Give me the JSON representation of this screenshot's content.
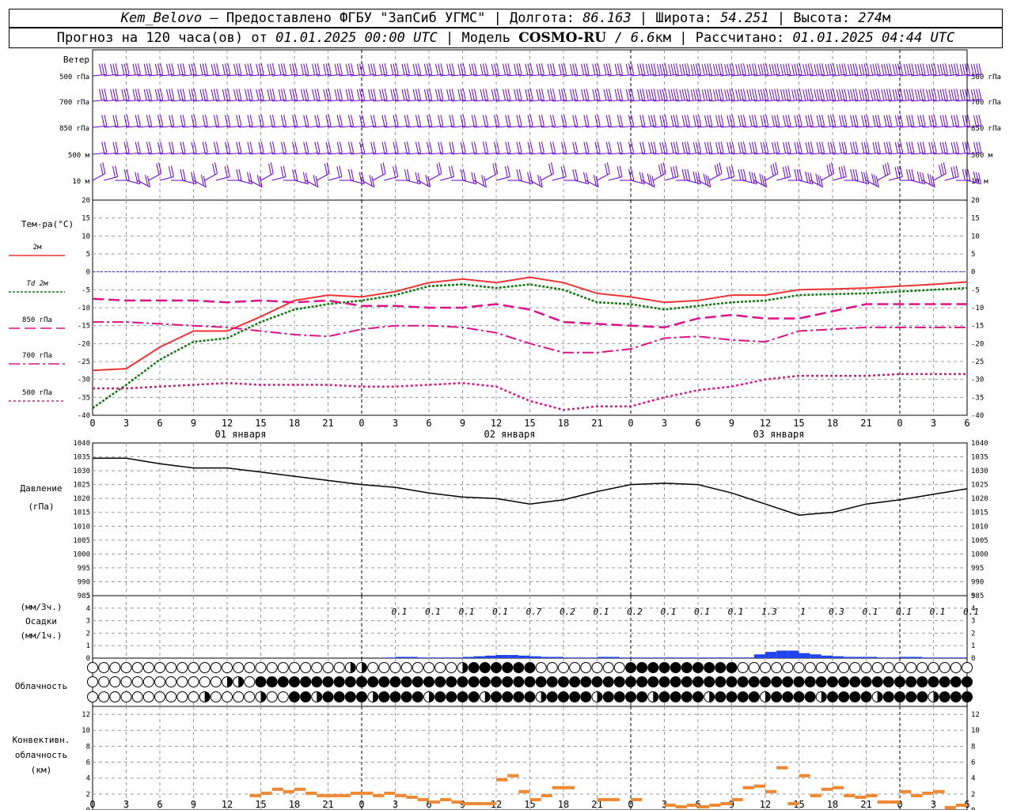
{
  "header": {
    "station": "Kem_Belovo",
    "provider": "Предоставлено ФГБУ \"ЗапСиб УГМС\"",
    "lon_label": "Долгота:",
    "lon": "86.163",
    "lat_label": "Широта:",
    "lat": "54.251",
    "alt_label": "Высота:",
    "alt": "274",
    "alt_unit": "м",
    "forecast_prefix": "Прогноз на 120 часа(ов) от",
    "forecast_time": "01.01.2025 00:00 UTC",
    "model_label": "Модель",
    "model": "COSMO-RU",
    "resolution": "6.6",
    "res_unit": "км",
    "calc_label": "Рассчитано:",
    "calc_time": "01.01.2025 04:44 UTC"
  },
  "colors": {
    "t2m": "#ee3333",
    "td": "#117711",
    "t850": "#dd1188",
    "wind": "#6600cc",
    "precip": "#2244ee",
    "conv": "#ee8833",
    "grid": "#999999",
    "zero": "#3333cc"
  },
  "wind_panel": {
    "title": "Ветер",
    "levels": [
      "500 гПа",
      "700 гПа",
      "850 гПа",
      "500 м",
      "10  м"
    ]
  },
  "x_axis": {
    "ticks": [
      "0",
      "3",
      "6",
      "9",
      "12",
      "15",
      "18",
      "21",
      "0",
      "3",
      "6",
      "9",
      "12",
      "15",
      "18",
      "21",
      "0",
      "3",
      "6",
      "9",
      "12",
      "15",
      "18",
      "21",
      "0",
      "3",
      "6"
    ],
    "days": [
      "01 января",
      "02 января",
      "03 января"
    ]
  },
  "temp_panel": {
    "title": "Тем-ра(°C)",
    "legend": [
      "2м",
      "Td  2м",
      "850 гПа",
      "700 гПа",
      "500 гПа"
    ],
    "y_ticks": [
      "20",
      "15",
      "10",
      "5",
      "0",
      "-5",
      "-10",
      "-15",
      "-20",
      "-25",
      "-30",
      "-35",
      "-40"
    ]
  },
  "pressure_panel": {
    "title": "Давление",
    "unit": "(гПа)",
    "y_ticks": [
      "1040",
      "1035",
      "1030",
      "1025",
      "1020",
      "1015",
      "1010",
      "1005",
      "1000",
      "995",
      "990",
      "985"
    ]
  },
  "precip_panel": {
    "unit3": "(мм/3ч.)",
    "title": "Осадки",
    "unit1": "(мм/1ч.)",
    "y_ticks": [
      "5",
      "4",
      "3",
      "2",
      "1",
      "0"
    ],
    "labels3h": [
      "0.1",
      "0.1",
      "0.1",
      "0.1",
      "0.7",
      "0.2",
      "0.1",
      "0.2",
      "0.1",
      "0.1",
      "0.1",
      "1.3",
      "1",
      "0.3",
      "0.1",
      "0.1",
      "0.1",
      "0.1"
    ]
  },
  "cloud_panel": {
    "title": "Облачность"
  },
  "conv_panel": {
    "title1": "Конвективн.",
    "title2": "облачность",
    "unit": "(км)",
    "y_ticks": [
      "12",
      "10",
      "8",
      "6",
      "4",
      "2",
      "0"
    ]
  },
  "chart_data": [
    {
      "type": "line",
      "name": "temperature",
      "ylabel": "Тем-ра(°C)",
      "ylim": [
        -40,
        20
      ],
      "grid": true,
      "x_hours": [
        0,
        3,
        6,
        9,
        12,
        15,
        18,
        21,
        24,
        27,
        30,
        33,
        36,
        39,
        42,
        45,
        48,
        51,
        54,
        57,
        60,
        63,
        66,
        69,
        72,
        75,
        78
      ],
      "series": [
        {
          "name": "2м",
          "values": [
            -27.5,
            -27,
            -21,
            -16.5,
            -16.5,
            -12.5,
            -8,
            -6.5,
            -7,
            -5.5,
            -3,
            -2,
            -3,
            -1.5,
            -3,
            -6,
            -7,
            -8.5,
            -8,
            -6.5,
            -6.5,
            -5,
            -4.8,
            -4.5,
            -4,
            -3.5,
            -2.8
          ]
        },
        {
          "name": "Td  2м",
          "values": [
            -38,
            -31.5,
            -24.5,
            -19.5,
            -18.5,
            -14,
            -10.5,
            -9,
            -8,
            -6.5,
            -4,
            -3.5,
            -4.5,
            -3.5,
            -5,
            -8.5,
            -9,
            -10.5,
            -9.5,
            -8.5,
            -8,
            -6.5,
            -6.2,
            -6,
            -5.5,
            -5,
            -4.5
          ]
        },
        {
          "name": "850 гПа",
          "values": [
            -7.5,
            -8,
            -8,
            -8,
            -8.5,
            -8,
            -8.5,
            -8,
            -9.5,
            -9.5,
            -10,
            -10,
            -9,
            -10.5,
            -14,
            -14.5,
            -15,
            -15.5,
            -13,
            -12,
            -13,
            -13,
            -11,
            -9,
            -9,
            -9,
            -9
          ]
        },
        {
          "name": "700 гПа",
          "values": [
            -14,
            -14,
            -14.5,
            -15,
            -15.5,
            -16.5,
            -17.5,
            -18,
            -16,
            -15,
            -15,
            -15.5,
            -17,
            -20,
            -22.5,
            -22.5,
            -21.5,
            -18.5,
            -18,
            -19,
            -19.5,
            -16.5,
            -16,
            -15.5,
            -15.5,
            -15.5,
            -15.5
          ]
        },
        {
          "name": "500 гПа",
          "values": [
            -32.5,
            -32.5,
            -32,
            -31.5,
            -31,
            -31.5,
            -31.5,
            -31.5,
            -32,
            -32,
            -31.5,
            -31,
            -32,
            -36,
            -38.5,
            -37.5,
            -37.5,
            -35,
            -33,
            -32,
            -30,
            -29,
            -29,
            -29,
            -28.5,
            -28.5,
            -28.5
          ]
        }
      ]
    },
    {
      "type": "line",
      "name": "pressure",
      "ylabel": "Давление",
      "ylim": [
        985,
        1040
      ],
      "grid": true,
      "x_hours": [
        0,
        3,
        6,
        9,
        12,
        15,
        18,
        21,
        24,
        27,
        30,
        33,
        36,
        39,
        42,
        45,
        48,
        51,
        54,
        57,
        60,
        63,
        66,
        69,
        72,
        75,
        78
      ],
      "series": [
        {
          "name": "Давление",
          "values": [
            1034.5,
            1034.5,
            1032.5,
            1031,
            1031,
            1029.5,
            1028,
            1026.5,
            1025,
            1024,
            1022,
            1020.5,
            1020,
            1018,
            1019.5,
            1022.5,
            1025,
            1025.5,
            1025,
            1022,
            1018,
            1014,
            1015,
            1018,
            1019.5,
            1021.5,
            1023.5
          ]
        }
      ]
    },
    {
      "type": "bar",
      "name": "precipitation",
      "ylabel": "Осадки",
      "ylim": [
        0,
        5
      ],
      "x_hours": [
        27,
        28,
        29,
        30,
        31,
        32,
        33,
        34,
        35,
        36,
        37,
        38,
        39,
        40,
        41,
        42,
        43,
        44,
        45,
        46,
        47,
        48,
        49,
        50,
        51,
        52,
        53,
        54,
        55,
        56,
        57,
        58,
        59,
        60,
        61,
        62,
        63,
        64,
        65,
        66,
        67,
        68,
        69,
        70,
        71,
        72,
        73,
        74,
        75,
        76,
        77,
        78
      ],
      "values": [
        0.05,
        0.1,
        0.1,
        0.05,
        0.05,
        0.05,
        0.05,
        0.1,
        0.15,
        0.2,
        0.25,
        0.25,
        0.2,
        0.15,
        0.1,
        0.1,
        0.05,
        0.05,
        0.05,
        0.1,
        0.1,
        0.05,
        0.05,
        0.05,
        0.05,
        0.05,
        0.05,
        0.05,
        0.05,
        0.05,
        0.05,
        0.05,
        0.05,
        0.3,
        0.5,
        0.6,
        0.6,
        0.4,
        0.3,
        0.2,
        0.15,
        0.1,
        0.1,
        0.1,
        0.05,
        0.05,
        0.1,
        0.1,
        0.05,
        0.05,
        0.05,
        0.05
      ]
    },
    {
      "type": "bar",
      "name": "convective_cloud",
      "ylabel": "(км)",
      "ylim": [
        0,
        13
      ],
      "x_hours": [
        14.5,
        15.5,
        16.5,
        17.5,
        18.5,
        19.5,
        20.5,
        21.5,
        22.5,
        23.5,
        24.5,
        25.5,
        26.5,
        27.5,
        28.5,
        29.5,
        30.5,
        31.5,
        32.5,
        33.5,
        34.5,
        35.5,
        36.5,
        37.5,
        38.5,
        39.5,
        40.5,
        41.5,
        42.5,
        45.5,
        46.5,
        48.5,
        51.5,
        52.5,
        53.5,
        54.5,
        55.5,
        56.5,
        57.5,
        58.5,
        59.5,
        60.5,
        61.5,
        62.5,
        63.5,
        64.5,
        65.5,
        66.5,
        67.5,
        68.5,
        69.5,
        70.5,
        71.5,
        72.5,
        73.5,
        74.5,
        75.5,
        76.5,
        77.5
      ],
      "values": [
        2,
        2.3,
        2.8,
        2.5,
        2.8,
        2.3,
        2,
        2,
        2,
        2.3,
        2.3,
        2,
        2.3,
        2,
        1.8,
        1.5,
        1.2,
        1.5,
        1.2,
        1,
        1,
        1,
        4,
        4.5,
        2.5,
        1.5,
        2,
        3,
        3,
        1.5,
        1.5,
        1.5,
        0.8,
        0.6,
        0.8,
        0.6,
        0.8,
        1,
        1.5,
        3,
        3.2,
        2.5,
        5.5,
        1,
        4.5,
        2,
        2.8,
        3,
        2,
        1.8,
        2,
        1.2,
        1.2,
        2.5,
        2,
        2.3,
        2.5,
        0.5,
        0.8
      ]
    }
  ]
}
